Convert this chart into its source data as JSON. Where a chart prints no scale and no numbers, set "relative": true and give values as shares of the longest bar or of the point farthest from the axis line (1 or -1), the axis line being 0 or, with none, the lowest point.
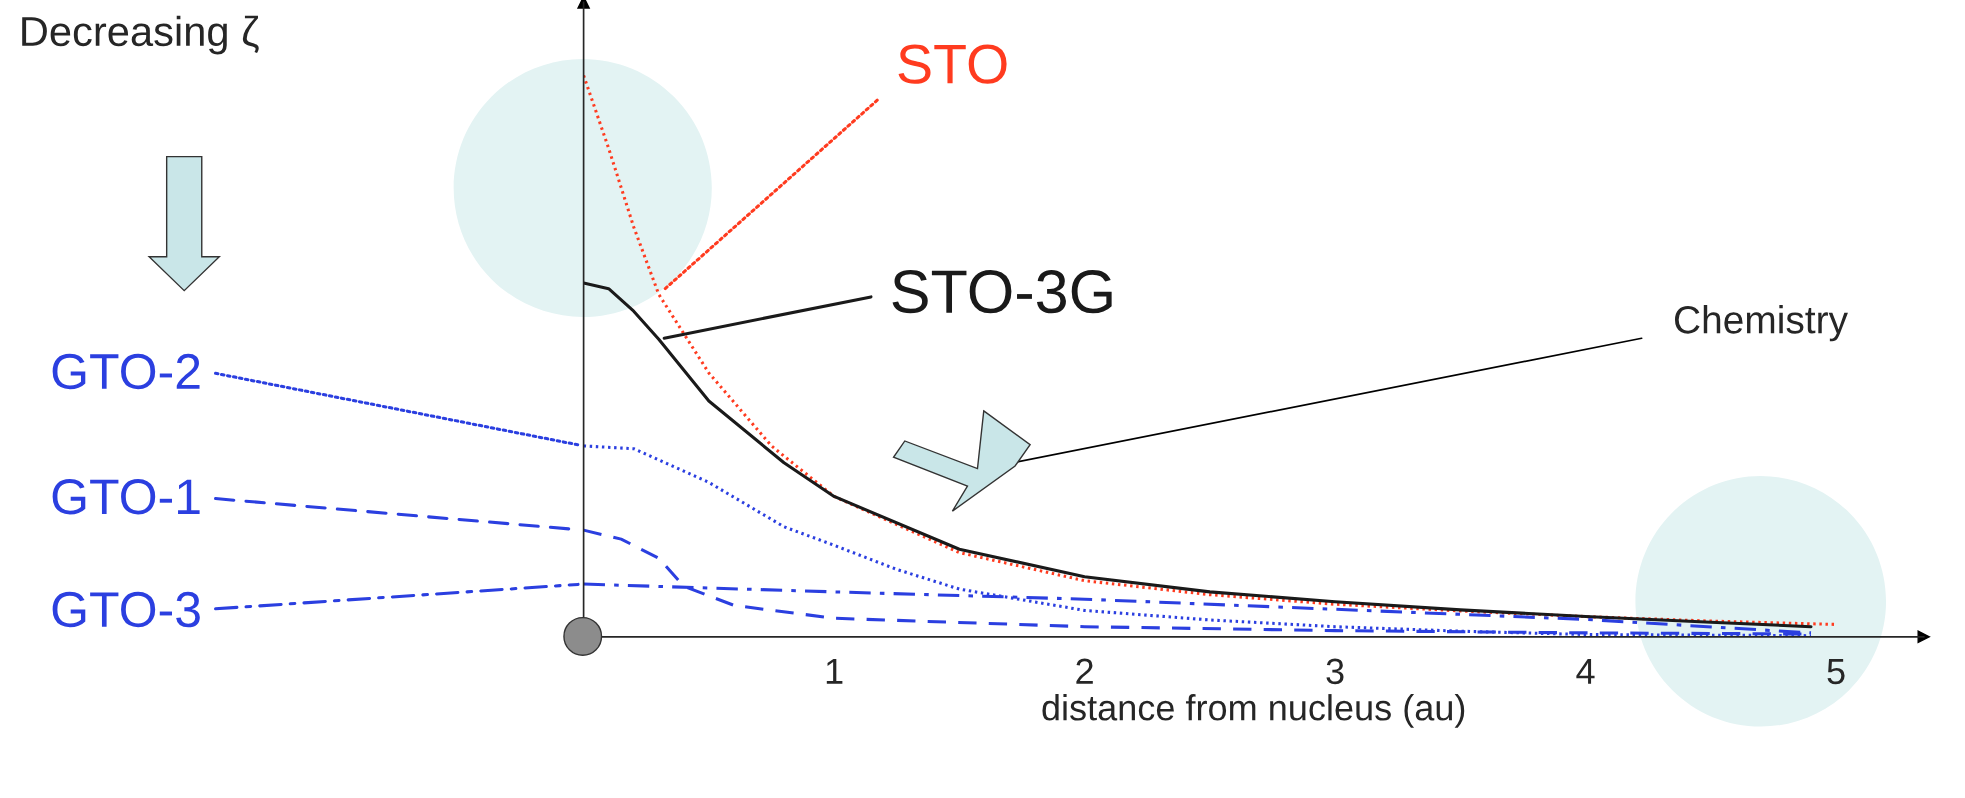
{
  "chart_data": {
    "type": "line",
    "relative": true,
    "xlabel": "distance from nucleus (au)",
    "xlim": [
      0,
      5.35
    ],
    "xticks": [
      1,
      2,
      3,
      4,
      5
    ],
    "tick_labels": "x",
    "grid": false,
    "annotations": [
      "Decreasing ζ",
      "Chemistry"
    ],
    "series": [
      {
        "name": "STO",
        "color": "#ff3b1f",
        "line_style": "dotted",
        "x": [
          0,
          0.1,
          0.2,
          0.3,
          0.5,
          0.75,
          1,
          1.5,
          2,
          2.5,
          3,
          3.5,
          4,
          4.5,
          5
        ],
        "values": [
          1.0,
          0.87,
          0.73,
          0.61,
          0.47,
          0.34,
          0.25,
          0.15,
          0.1,
          0.075,
          0.058,
          0.046,
          0.036,
          0.028,
          0.022
        ]
      },
      {
        "name": "STO-3G",
        "color": "#1a1a1a",
        "line_style": "solid",
        "x": [
          0,
          0.1,
          0.2,
          0.3,
          0.5,
          0.8,
          1,
          1.5,
          2,
          2.5,
          3,
          3.5,
          4,
          4.5,
          4.9
        ],
        "values": [
          0.63,
          0.62,
          0.58,
          0.53,
          0.42,
          0.31,
          0.25,
          0.156,
          0.107,
          0.08,
          0.0625,
          0.048,
          0.036,
          0.026,
          0.018
        ]
      },
      {
        "name": "GTO-2",
        "color": "#2b3fe0",
        "line_style": "dotted",
        "x": [
          0,
          0.2,
          0.5,
          0.8,
          1,
          1.25,
          1.5,
          2,
          2.5,
          3,
          3.5,
          4,
          4.9
        ],
        "values": [
          0.34,
          0.335,
          0.275,
          0.196,
          0.163,
          0.12,
          0.085,
          0.047,
          0.03,
          0.018,
          0.01,
          0.004,
          0.002
        ]
      },
      {
        "name": "GTO-1",
        "color": "#2b3fe0",
        "line_style": "dashed",
        "x": [
          0,
          0.15,
          0.3,
          0.4,
          0.6,
          1,
          2,
          3,
          4,
          4.9
        ],
        "values": [
          0.19,
          0.174,
          0.14,
          0.09,
          0.056,
          0.033,
          0.018,
          0.011,
          0.007,
          0.005
        ]
      },
      {
        "name": "GTO-3",
        "color": "#2b3fe0",
        "line_style": "dashdot",
        "x": [
          0,
          0.35,
          1,
          2,
          3,
          4,
          4.9
        ],
        "values": [
          0.094,
          0.089,
          0.08,
          0.067,
          0.049,
          0.031,
          0.007
        ]
      }
    ]
  }
}
